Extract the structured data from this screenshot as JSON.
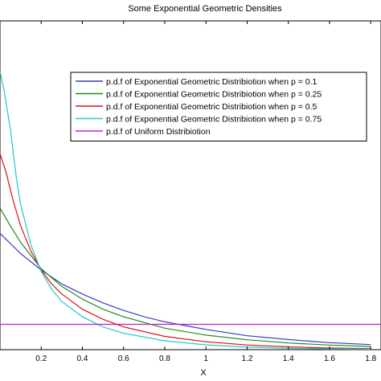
{
  "chart_data": {
    "type": "line",
    "title": "Some Exponential Geometric Densities",
    "xlabel": "X",
    "ylabel": "",
    "xlim": [
      0,
      1.85
    ],
    "ylim": [
      0,
      2.6
    ],
    "xticks": [
      0.2,
      0.4,
      0.6,
      0.8,
      1,
      1.2,
      1.4,
      1.6,
      1.8
    ],
    "xtick_labels": [
      "0.2",
      "0.4",
      "0.6",
      "0.8",
      "1",
      "1.2",
      "1.4",
      "1.6",
      "1.8"
    ],
    "grid": false,
    "legend_position": "top-right",
    "series": [
      {
        "name": "p.d.f of Exponential Geometric Distribiotion when p = 0.1",
        "color": "#3a3ac8",
        "x": [
          0,
          0.1,
          0.2,
          0.3,
          0.4,
          0.5,
          0.6,
          0.7,
          0.8,
          1.0,
          1.2,
          1.4,
          1.6,
          1.8
        ],
        "y": [
          0.92,
          0.76,
          0.63,
          0.52,
          0.44,
          0.37,
          0.31,
          0.26,
          0.22,
          0.16,
          0.11,
          0.08,
          0.055,
          0.04
        ]
      },
      {
        "name": "p.d.f of Exponential Geometric Distribiotion when p = 0.25",
        "color": "#1e8a1e",
        "x": [
          0,
          0.05,
          0.1,
          0.2,
          0.3,
          0.4,
          0.5,
          0.6,
          0.8,
          1.0,
          1.2,
          1.4,
          1.6,
          1.8
        ],
        "y": [
          1.12,
          0.98,
          0.85,
          0.64,
          0.5,
          0.4,
          0.32,
          0.26,
          0.17,
          0.115,
          0.078,
          0.053,
          0.036,
          0.025
        ]
      },
      {
        "name": "p.d.f of Exponential Geometric Distribiotion when p = 0.5",
        "color": "#e01010",
        "x": [
          0,
          0.03,
          0.06,
          0.1,
          0.15,
          0.2,
          0.25,
          0.3,
          0.4,
          0.5,
          0.6,
          0.8,
          1.0,
          1.2,
          1.4,
          1.6,
          1.8
        ],
        "y": [
          1.55,
          1.4,
          1.2,
          0.98,
          0.78,
          0.63,
          0.52,
          0.44,
          0.32,
          0.24,
          0.18,
          0.105,
          0.062,
          0.037,
          0.022,
          0.013,
          0.008
        ]
      },
      {
        "name": "p.d.f of Exponential Geometric Distribiotion when p = 0.75",
        "color": "#20c8c8",
        "x": [
          0,
          0.02,
          0.05,
          0.08,
          0.1,
          0.15,
          0.2,
          0.25,
          0.3,
          0.4,
          0.5,
          0.6,
          0.8,
          1.0,
          1.2,
          1.4,
          1.6,
          1.8
        ],
        "y": [
          2.2,
          2.05,
          1.75,
          1.35,
          1.15,
          0.83,
          0.62,
          0.48,
          0.38,
          0.26,
          0.18,
          0.13,
          0.07,
          0.038,
          0.02,
          0.011,
          0.006,
          0.004
        ]
      },
      {
        "name": "p.d.f of Uniform Distribiotion",
        "color": "#c020c8",
        "x": [
          0,
          1.85
        ],
        "y": [
          0.2,
          0.2
        ]
      }
    ]
  }
}
